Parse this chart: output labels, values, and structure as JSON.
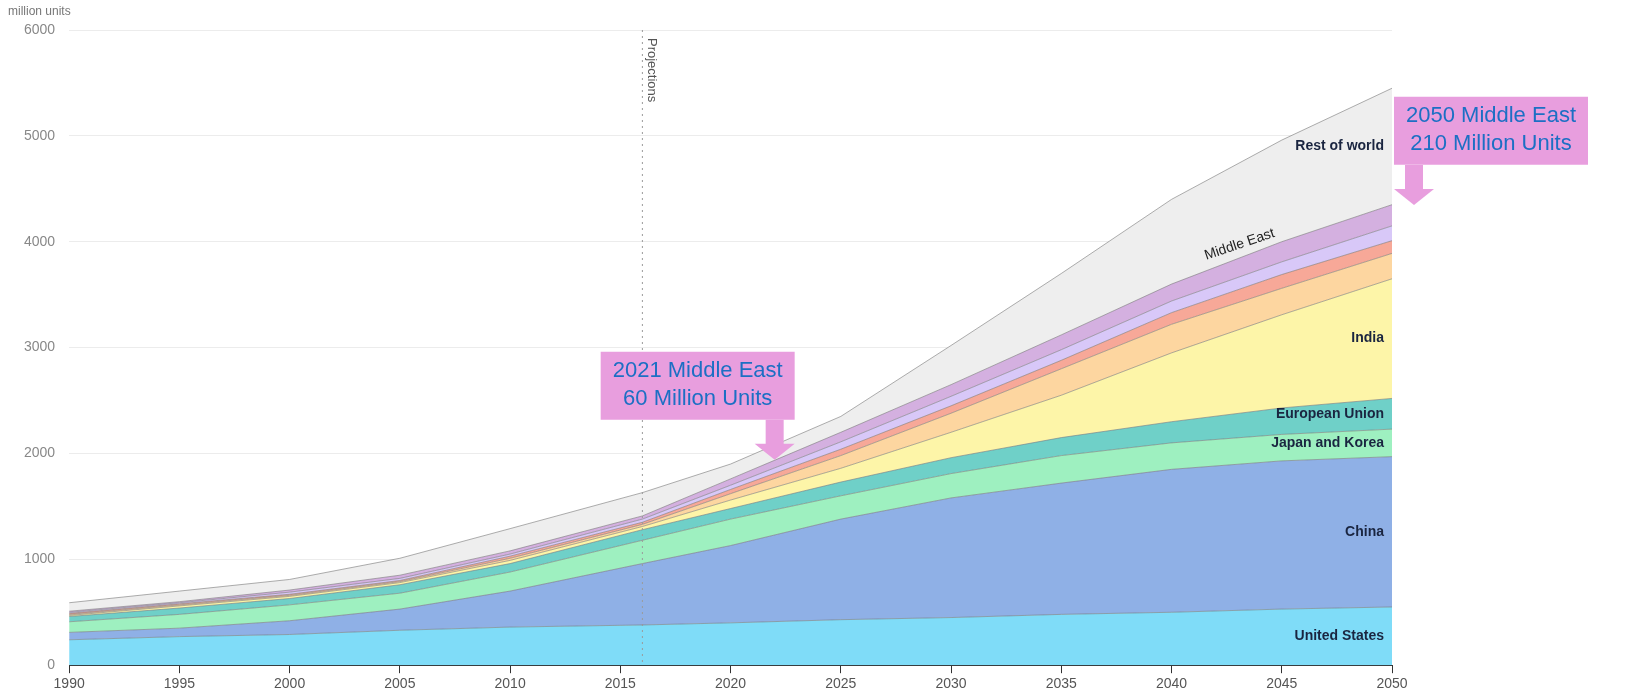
{
  "chart_data": {
    "type": "area",
    "stacked": true,
    "ylabel": "million units",
    "legend": false,
    "grid": "y",
    "x": [
      1990,
      1995,
      2000,
      2005,
      2010,
      2016,
      2020,
      2025,
      2030,
      2035,
      2040,
      2045,
      2050
    ],
    "xlim": [
      1990,
      2050
    ],
    "xticks": [
      1990,
      1995,
      2000,
      2005,
      2010,
      2015,
      2020,
      2025,
      2030,
      2035,
      2040,
      2045,
      2050
    ],
    "ylim": [
      0,
      6000
    ],
    "yticks": [
      0,
      1000,
      2000,
      3000,
      4000,
      5000,
      6000
    ],
    "series": [
      {
        "name": "United States",
        "color": "#7fdcf8",
        "values": [
          240,
          270,
          290,
          330,
          360,
          380,
          400,
          430,
          450,
          480,
          500,
          530,
          550
        ]
      },
      {
        "name": "China",
        "color": "#8fb0e6",
        "values": [
          70,
          80,
          130,
          200,
          340,
          580,
          730,
          950,
          1130,
          1240,
          1350,
          1400,
          1420
        ]
      },
      {
        "name": "Japan and Korea",
        "color": "#9ef0c0",
        "values": [
          100,
          130,
          150,
          150,
          180,
          220,
          250,
          220,
          230,
          260,
          250,
          250,
          260
        ]
      },
      {
        "name": "European Union",
        "color": "#6fd0c8",
        "values": [
          50,
          60,
          60,
          80,
          80,
          100,
          100,
          130,
          150,
          170,
          200,
          250,
          290
        ]
      },
      {
        "name": "India",
        "color": "#fdf5a8",
        "values": [
          10,
          20,
          20,
          20,
          30,
          30,
          80,
          130,
          240,
          400,
          650,
          880,
          1130
        ]
      },
      {
        "color": "#fdd6a0",
        "values": [
          10,
          10,
          10,
          10,
          20,
          20,
          60,
          120,
          180,
          250,
          270,
          250,
          240
        ]
      },
      {
        "color": "#f7a898",
        "values": [
          10,
          10,
          10,
          10,
          20,
          20,
          40,
          60,
          70,
          80,
          110,
          130,
          120
        ]
      },
      {
        "color": "#d8c8f8",
        "values": [
          10,
          10,
          20,
          20,
          20,
          30,
          40,
          70,
          90,
          100,
          110,
          120,
          140
        ]
      },
      {
        "name": "Middle East",
        "color": "#d4b0e0",
        "values": [
          10,
          10,
          20,
          30,
          30,
          30,
          60,
          90,
          110,
          140,
          160,
          190,
          200
        ]
      },
      {
        "name": "Rest of world",
        "color": "#eeeeee",
        "values": [
          80,
          100,
          100,
          160,
          210,
          220,
          140,
          150,
          370,
          580,
          800,
          960,
          1100
        ]
      }
    ],
    "ref_lines": [
      {
        "axis": "x",
        "value": 2016,
        "label": "Projections",
        "line_style": "dotted"
      }
    ],
    "annotations": [
      {
        "text": "2021 Middle East 60 Million Units",
        "x": 2022,
        "y": 1940
      },
      {
        "text": "2050 Middle East 210 Million Units",
        "x": 2050,
        "y": 4350
      }
    ]
  }
}
